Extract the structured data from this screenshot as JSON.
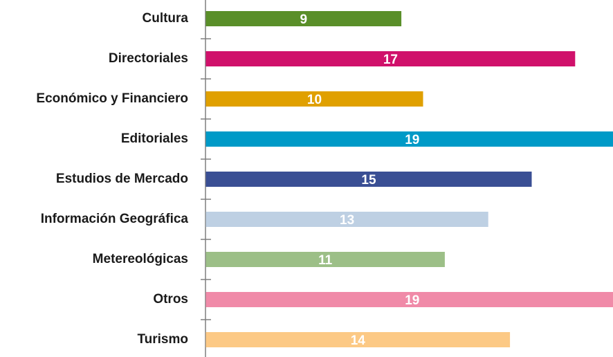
{
  "chart_data": {
    "type": "barh",
    "categories": [
      "Cultura",
      "Directoriales",
      "Económico y Financiero",
      "Editoriales",
      "Estudios de Mercado",
      "Información Geográfica",
      "Metereológicas",
      "Otros",
      "Turismo"
    ],
    "values": [
      9,
      17,
      10,
      19,
      15,
      13,
      11,
      19,
      14
    ],
    "colors": [
      "#5a8f29",
      "#d0116b",
      "#e0a000",
      "#009ac7",
      "#3a4f94",
      "#bed0e3",
      "#9cbf87",
      "#f08aa8",
      "#fcc985"
    ]
  }
}
